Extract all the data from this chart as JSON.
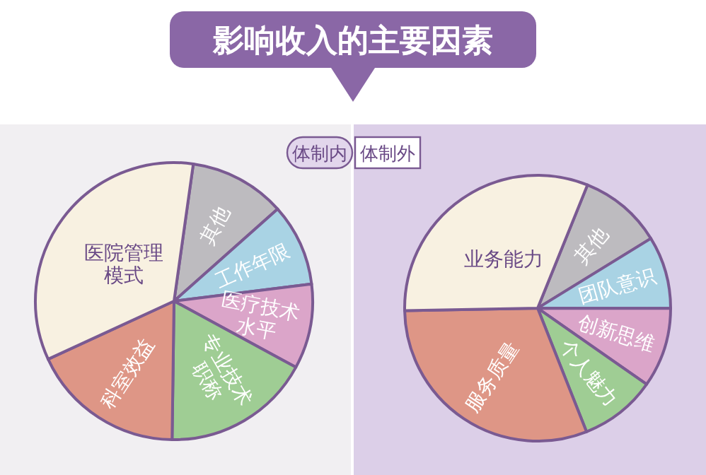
{
  "chart_data": [
    {
      "type": "pie",
      "title": "影响收入的主要因素",
      "subtitle": "体制内",
      "categories": [
        "其他",
        "工作年限",
        "医疗技术水平",
        "专业技术职称",
        "科室效益",
        "医院管理模式"
      ],
      "values": [
        11.2,
        9.6,
        9.9,
        17.3,
        17.9,
        34.1
      ],
      "colors": [
        "#bdbbbf",
        "#a9d3e4",
        "#dba5c9",
        "#9fcd94",
        "#de9686",
        "#f8f1e1"
      ]
    },
    {
      "type": "pie",
      "subtitle": "体制外",
      "categories": [
        "其他",
        "团队意识",
        "创新思维",
        "个人魅力",
        "服务质量",
        "业务能力"
      ],
      "values": [
        10.1,
        8.8,
        9.7,
        9.3,
        30.7,
        31.4
      ],
      "colors": [
        "#bdbbbf",
        "#a9d3e4",
        "#dba5c9",
        "#9fcd94",
        "#de9686",
        "#f8f1e1"
      ]
    }
  ]
}
